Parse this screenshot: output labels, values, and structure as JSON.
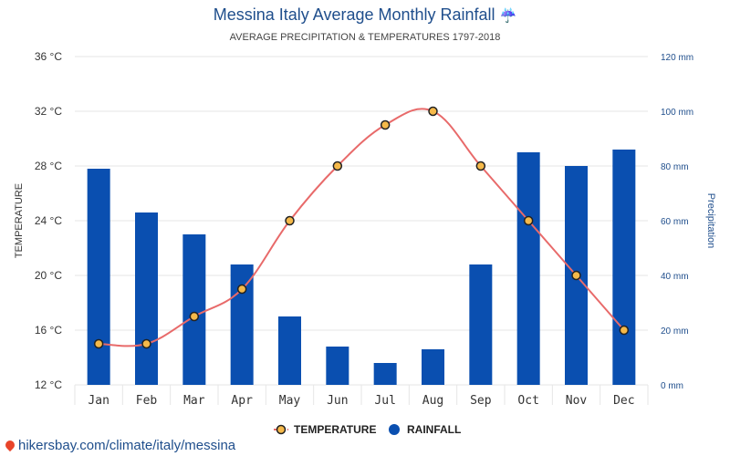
{
  "header": {
    "title": "Messina Italy Average Monthly Rainfall",
    "title_icon": "umbrella-rain-icon",
    "subtitle": "AVERAGE PRECIPITATION & TEMPERATURES 1797-2018"
  },
  "footer": {
    "link_text": "hikersbay.com/climate/italy/messina",
    "icon": "location-pin-icon"
  },
  "chart_data": {
    "type": "bar+line",
    "categories": [
      "Jan",
      "Feb",
      "Mar",
      "Apr",
      "May",
      "Jun",
      "Jul",
      "Aug",
      "Sep",
      "Oct",
      "Nov",
      "Dec"
    ],
    "left_axis": {
      "label": "TEMPERATURE",
      "range": [
        12,
        36
      ],
      "ticks": [
        12,
        16,
        20,
        24,
        28,
        32,
        36
      ],
      "tick_labels": [
        "12 °C",
        "16 °C",
        "20 °C",
        "24 °C",
        "28 °C",
        "32 °C",
        "36 °C"
      ]
    },
    "right_axis": {
      "label": "Precipitation",
      "range": [
        0,
        120
      ],
      "ticks": [
        0,
        20,
        40,
        60,
        80,
        100,
        120
      ],
      "tick_labels": [
        "0 mm",
        "20 mm",
        "40 mm",
        "60 mm",
        "80 mm",
        "100 mm",
        "120 mm"
      ]
    },
    "series": [
      {
        "name": "TEMPERATURE",
        "type": "line",
        "axis": "left",
        "values": [
          15,
          15,
          17,
          19,
          24,
          28,
          31,
          32,
          28,
          24,
          20,
          16
        ]
      },
      {
        "name": "RAINFALL",
        "type": "bar",
        "axis": "right",
        "values": [
          79,
          63,
          55,
          44,
          25,
          14,
          8,
          13,
          44,
          85,
          80,
          86
        ]
      }
    ],
    "grid": true,
    "legend_position": "bottom-center",
    "colors": {
      "bar": "#0a4fb0",
      "line": "#e86a6a",
      "marker_fill": "#f5b94a",
      "marker_stroke": "#222222",
      "left_tick_text": "#333333",
      "right_tick_text": "#1f4e8c",
      "grid": "#e6e6e6"
    }
  }
}
